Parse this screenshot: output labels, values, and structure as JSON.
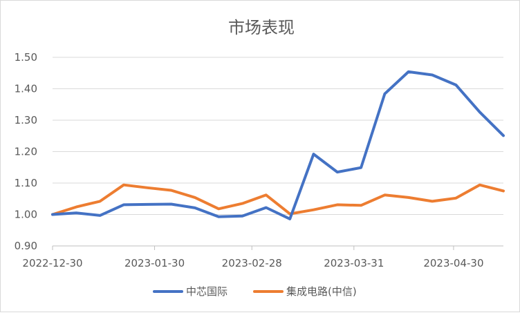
{
  "chart_data": {
    "type": "line",
    "title": "市场表现",
    "xlabel": "",
    "ylabel": "",
    "ylim": [
      0.9,
      1.5
    ],
    "yticks": [
      "0.90",
      "1.00",
      "1.10",
      "1.20",
      "1.30",
      "1.40",
      "1.50"
    ],
    "x_tick_labels": [
      "2022-12-30",
      "2023-01-30",
      "2023-02-28",
      "2023-03-31",
      "2023-04-30"
    ],
    "x_tick_index": [
      0,
      4.3,
      8.4,
      12.7,
      16.9
    ],
    "grid": "horizontal",
    "legend_position": "bottom",
    "series": [
      {
        "name": "中芯国际",
        "color": "#4472C4",
        "values": [
          1.0,
          1.005,
          0.997,
          1.031,
          1.032,
          1.033,
          1.021,
          0.993,
          0.995,
          1.022,
          0.986,
          1.192,
          1.135,
          1.149,
          1.384,
          1.454,
          1.444,
          1.412,
          1.326,
          1.251
        ]
      },
      {
        "name": "集成电路(中信)",
        "color": "#ED7D31",
        "values": [
          1.0,
          1.024,
          1.042,
          1.094,
          1.085,
          1.077,
          1.054,
          1.018,
          1.035,
          1.062,
          1.002,
          1.015,
          1.031,
          1.029,
          1.062,
          1.054,
          1.042,
          1.052,
          1.094,
          1.075
        ]
      }
    ]
  }
}
